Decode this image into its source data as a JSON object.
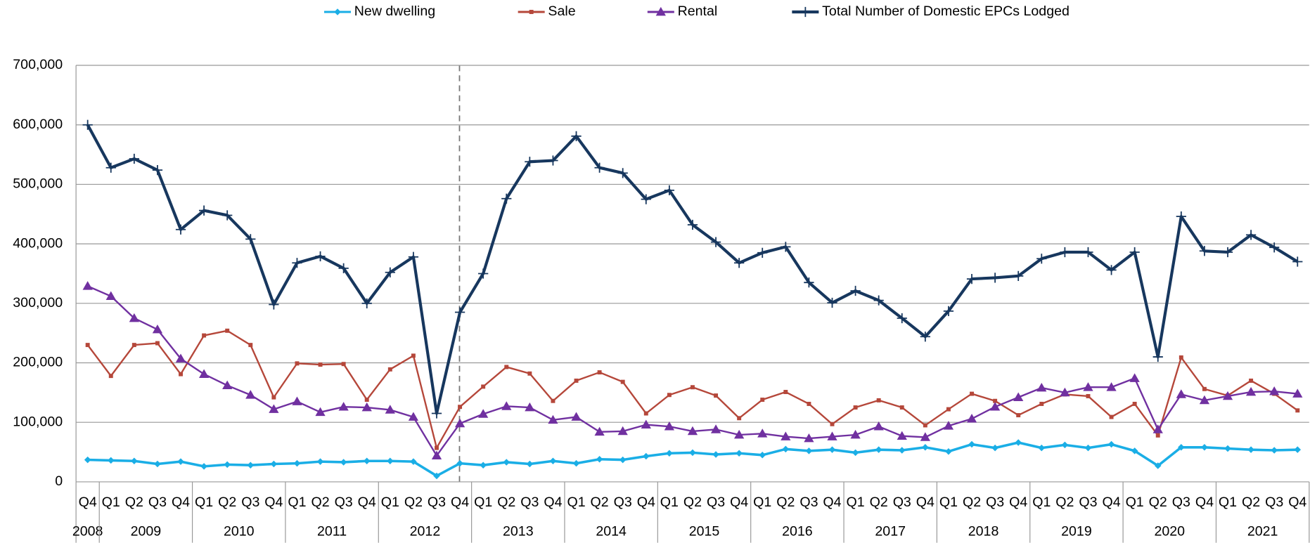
{
  "chart_data": {
    "type": "line",
    "categories": [
      "Q4",
      "Q1",
      "Q2",
      "Q3",
      "Q4",
      "Q1",
      "Q2",
      "Q3",
      "Q4",
      "Q1",
      "Q2",
      "Q3",
      "Q4",
      "Q1",
      "Q2",
      "Q3",
      "Q4",
      "Q1",
      "Q2",
      "Q3",
      "Q4",
      "Q1",
      "Q2",
      "Q3",
      "Q4",
      "Q1",
      "Q2",
      "Q3",
      "Q4",
      "Q1",
      "Q2",
      "Q3",
      "Q4",
      "Q1",
      "Q2",
      "Q3",
      "Q4",
      "Q1",
      "Q2",
      "Q3",
      "Q4",
      "Q1",
      "Q2",
      "Q3",
      "Q4",
      "Q1",
      "Q2",
      "Q3",
      "Q4",
      "Q1",
      "Q2",
      "Q3",
      "Q4"
    ],
    "category_groups": [
      {
        "label": "2008",
        "size": 1
      },
      {
        "label": "2009",
        "size": 4
      },
      {
        "label": "2010",
        "size": 4
      },
      {
        "label": "2011",
        "size": 4
      },
      {
        "label": "2012",
        "size": 4
      },
      {
        "label": "2013",
        "size": 4
      },
      {
        "label": "2014",
        "size": 4
      },
      {
        "label": "2015",
        "size": 4
      },
      {
        "label": "2016",
        "size": 4
      },
      {
        "label": "2017",
        "size": 4
      },
      {
        "label": "2018",
        "size": 4
      },
      {
        "label": "2019",
        "size": 4
      },
      {
        "label": "2020",
        "size": 4
      },
      {
        "label": "2021",
        "size": 4
      }
    ],
    "series": [
      {
        "name": "New dwelling",
        "color": "#1aaee6",
        "marker": "diamond",
        "values": [
          37000,
          36000,
          35000,
          30000,
          34000,
          26000,
          29000,
          28000,
          30000,
          31000,
          34000,
          33000,
          35000,
          35000,
          34000,
          10000,
          31000,
          28000,
          33000,
          30000,
          35000,
          31000,
          38000,
          37000,
          43000,
          48000,
          49000,
          46000,
          48000,
          45000,
          55000,
          52000,
          54000,
          49000,
          54000,
          53000,
          58000,
          51000,
          63000,
          57000,
          66000,
          57000,
          62000,
          57000,
          63000,
          52000,
          27000,
          58000,
          58000,
          56000,
          54000,
          53000,
          54000
        ]
      },
      {
        "name": "Sale",
        "color": "#b5473a",
        "marker": "square",
        "values": [
          230000,
          178000,
          230000,
          233000,
          181000,
          246000,
          254000,
          230000,
          142000,
          199000,
          197000,
          198000,
          138000,
          189000,
          212000,
          57000,
          126000,
          160000,
          193000,
          182000,
          136000,
          170000,
          184000,
          168000,
          115000,
          146000,
          159000,
          145000,
          107000,
          138000,
          151000,
          131000,
          97000,
          125000,
          137000,
          125000,
          95000,
          122000,
          148000,
          136000,
          112000,
          131000,
          147000,
          144000,
          109000,
          131000,
          78000,
          209000,
          156000,
          145000,
          170000,
          148000,
          120000
        ]
      },
      {
        "name": "Rental",
        "color": "#7030a0",
        "marker": "triangle",
        "values": [
          329000,
          312000,
          275000,
          256000,
          207000,
          181000,
          162000,
          146000,
          122000,
          135000,
          117000,
          126000,
          125000,
          121000,
          109000,
          44000,
          98000,
          114000,
          127000,
          125000,
          104000,
          109000,
          84000,
          85000,
          96000,
          93000,
          85000,
          88000,
          79000,
          81000,
          76000,
          73000,
          76000,
          79000,
          93000,
          77000,
          75000,
          94000,
          106000,
          126000,
          142000,
          158000,
          150000,
          159000,
          159000,
          174000,
          88000,
          147000,
          137000,
          144000,
          151000,
          152000,
          148000
        ]
      },
      {
        "name": "Total Number of Domestic EPCs Lodged",
        "color": "#17375e",
        "marker": "plus",
        "values": [
          600000,
          528000,
          543000,
          524000,
          424000,
          456000,
          448000,
          408000,
          298000,
          368000,
          379000,
          359000,
          300000,
          352000,
          378000,
          115000,
          285000,
          350000,
          476000,
          538000,
          540000,
          581000,
          528000,
          519000,
          475000,
          490000,
          432000,
          403000,
          368000,
          385000,
          395000,
          335000,
          301000,
          321000,
          305000,
          275000,
          244000,
          287000,
          341000,
          343000,
          346000,
          375000,
          386000,
          386000,
          356000,
          386000,
          210000,
          446000,
          388000,
          386000,
          415000,
          394000,
          370000
        ]
      }
    ],
    "ylim": [
      0,
      700000
    ],
    "yticks": [
      0,
      {
        "value": 100000,
        "label": "100,000"
      },
      {
        "value": 200000,
        "label": "200,000"
      },
      {
        "value": 300000,
        "label": "300,000"
      },
      {
        "value": 400000,
        "label": "400,000"
      },
      {
        "value": 500000,
        "label": "500,000"
      },
      {
        "value": 600000,
        "label": "600,000"
      },
      {
        "value": 700000,
        "label": "700,000"
      }
    ],
    "grid": true,
    "legend": "top"
  }
}
